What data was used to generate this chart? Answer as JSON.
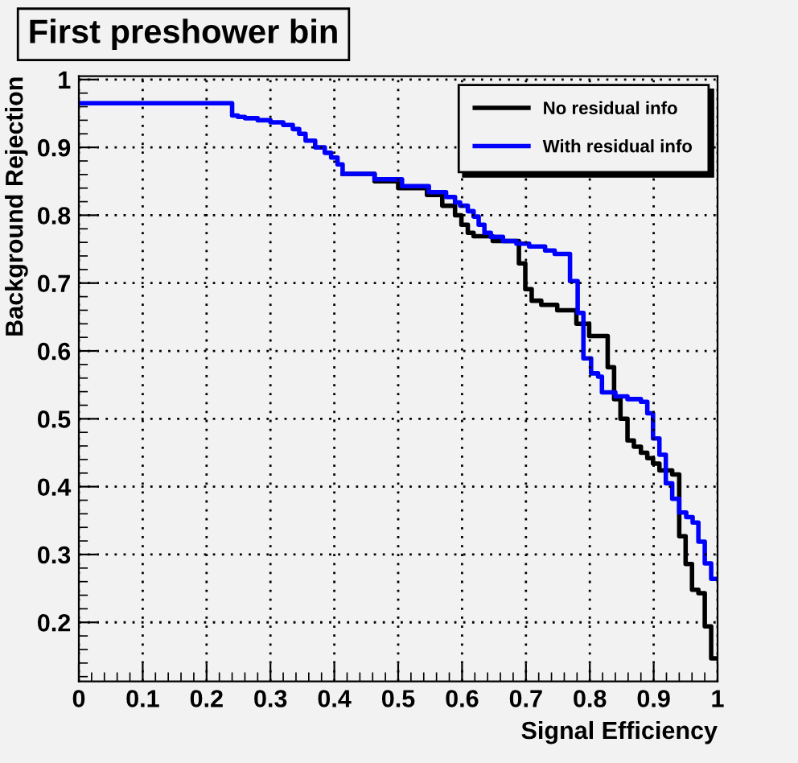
{
  "chart_data": {
    "type": "step",
    "title": "First preshower bin",
    "xlabel": "Signal Efficiency",
    "ylabel": "Background Rejection",
    "series": [
      {
        "name": "No residual info",
        "color": "#000000",
        "x": [
          0.413,
          0.463,
          0.5,
          0.545,
          0.569,
          0.589,
          0.599,
          0.609,
          0.618,
          0.648,
          0.689,
          0.699,
          0.709,
          0.724,
          0.749,
          0.779,
          0.799,
          0.828,
          0.838,
          0.848,
          0.859,
          0.869,
          0.88,
          0.89,
          0.899,
          0.909,
          0.929,
          0.94,
          0.95,
          0.96,
          0.97,
          0.98,
          0.99,
          1.0
        ],
        "values": [
          0.861,
          0.85,
          0.84,
          0.83,
          0.814,
          0.8,
          0.786,
          0.774,
          0.769,
          0.762,
          0.729,
          0.691,
          0.674,
          0.668,
          0.66,
          0.64,
          0.622,
          0.576,
          0.529,
          0.5,
          0.468,
          0.459,
          0.45,
          0.442,
          0.434,
          0.424,
          0.418,
          0.327,
          0.286,
          0.248,
          0.243,
          0.194,
          0.147,
          0.147
        ]
      },
      {
        "name": "With residual info",
        "color": "#0000ff",
        "x": [
          0,
          0.24,
          0.249,
          0.26,
          0.28,
          0.3,
          0.32,
          0.335,
          0.345,
          0.355,
          0.37,
          0.385,
          0.395,
          0.405,
          0.413,
          0.463,
          0.506,
          0.548,
          0.575,
          0.589,
          0.597,
          0.609,
          0.618,
          0.626,
          0.635,
          0.645,
          0.664,
          0.685,
          0.705,
          0.73,
          0.745,
          0.769,
          0.781,
          0.79,
          0.802,
          0.813,
          0.819,
          0.84,
          0.859,
          0.88,
          0.89,
          0.899,
          0.909,
          0.919,
          0.929,
          0.94,
          0.951,
          0.961,
          0.97,
          0.98,
          0.99,
          1.0
        ],
        "values": [
          0.965,
          0.947,
          0.945,
          0.943,
          0.94,
          0.937,
          0.933,
          0.927,
          0.92,
          0.91,
          0.9,
          0.892,
          0.885,
          0.875,
          0.861,
          0.853,
          0.843,
          0.834,
          0.827,
          0.819,
          0.814,
          0.806,
          0.798,
          0.786,
          0.774,
          0.768,
          0.762,
          0.758,
          0.754,
          0.748,
          0.743,
          0.703,
          0.656,
          0.589,
          0.567,
          0.562,
          0.539,
          0.533,
          0.529,
          0.525,
          0.508,
          0.471,
          0.447,
          0.405,
          0.382,
          0.362,
          0.355,
          0.347,
          0.319,
          0.287,
          0.264,
          0.264
        ]
      }
    ],
    "xlim": [
      0,
      1
    ],
    "ylim": [
      0.113,
      1.005
    ],
    "xticks": [
      0,
      0.1,
      0.2,
      0.3,
      0.4,
      0.5,
      0.6,
      0.7,
      0.8,
      0.9,
      1
    ],
    "yticks": [
      0.2,
      0.3,
      0.4,
      0.5,
      0.6,
      0.7,
      0.8,
      0.9,
      1
    ],
    "grid": true,
    "legend": "top right",
    "line_style": "solid",
    "marker": "none"
  }
}
